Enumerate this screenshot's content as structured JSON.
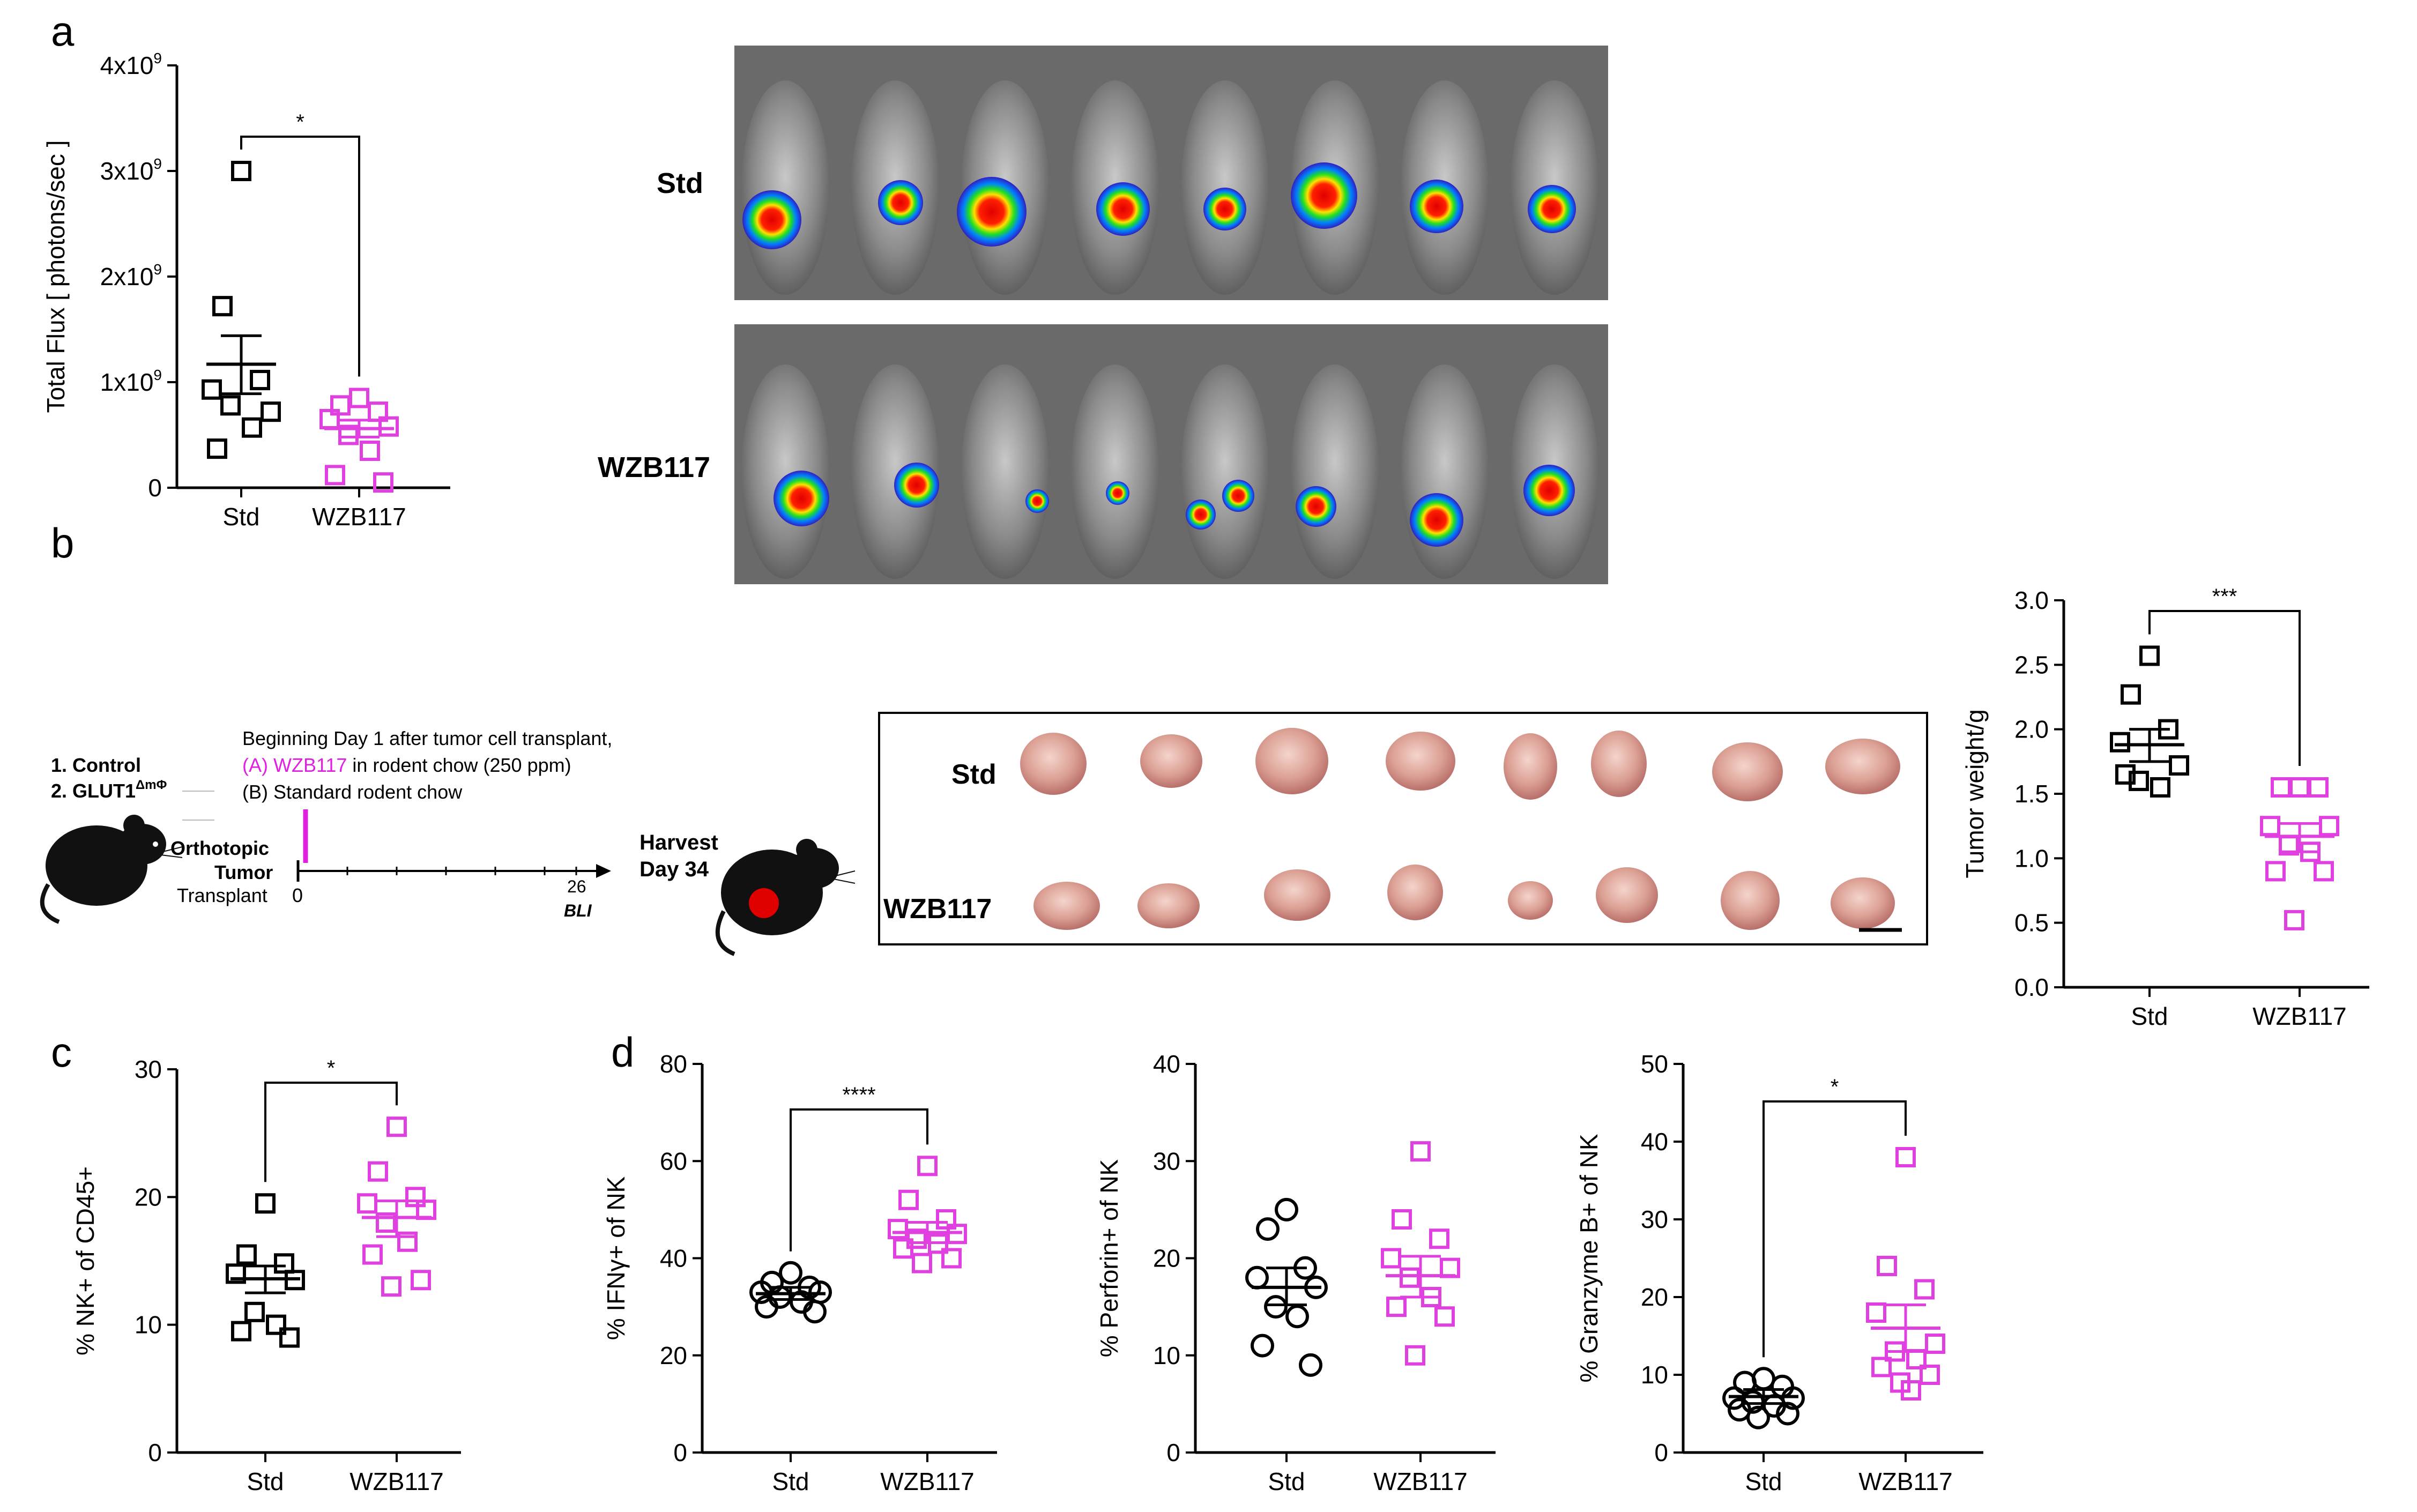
{
  "panel_labels": {
    "a": "a",
    "b": "b",
    "c": "c",
    "d": "d"
  },
  "colors": {
    "std": "#000000",
    "wzb": "#e040e0",
    "sig": "#000000"
  },
  "bli": {
    "row_labels": [
      "Std",
      "WZB117"
    ]
  },
  "timeline": {
    "group1": "1. Control",
    "group2": "2. GLUT1",
    "group2_sup": "ΔmΦ",
    "note_line1": "Beginning Day 1 after tumor cell transplant,",
    "note_line2_prefix": "(A) WZB117",
    "note_line2_suffix": " in rodent chow (250 ppm)",
    "note_line3": "(B) Standard rodent chow",
    "transplant_line1": "Orthotopic",
    "transplant_line2": "Tumor",
    "transplant_line3": "Transplant",
    "day0": "0",
    "day26": "26",
    "bli_label": "BLI",
    "harvest_line1": "Harvest",
    "harvest_line2": "Day 34"
  },
  "tumor_photo": {
    "row_labels": [
      "Std",
      "WZB117"
    ]
  },
  "chart_data": [
    {
      "id": "flux",
      "type": "scatter",
      "title": "",
      "ylabel": "Total Flux [ photons/sec ]",
      "ylim": [
        0,
        4
      ],
      "yticks": [
        "0",
        "1x10",
        "2x10",
        "3x10",
        "4x10"
      ],
      "ytick_exp": "9",
      "categories": [
        "Std",
        "WZB117"
      ],
      "marker": "square",
      "series": [
        {
          "name": "Std",
          "values": [
            3.0,
            1.72,
            1.02,
            0.93,
            0.72,
            0.78,
            0.57,
            0.37
          ],
          "mean": 1.17,
          "sem_low": 0.89,
          "sem_high": 1.44
        },
        {
          "name": "WZB117",
          "values": [
            0.85,
            0.78,
            0.72,
            0.65,
            0.58,
            0.5,
            0.35,
            0.12,
            0.05
          ],
          "mean": 0.56,
          "sem_low": 0.48,
          "sem_high": 0.64
        }
      ],
      "significance": "*"
    },
    {
      "id": "tumor_weight",
      "type": "scatter",
      "title": "",
      "ylabel": "Tumor weight/g",
      "ylim": [
        0,
        3
      ],
      "yticks": [
        "0.0",
        "0.5",
        "1.0",
        "1.5",
        "2.0",
        "2.5",
        "3.0"
      ],
      "categories": [
        "Std",
        "WZB117"
      ],
      "marker": "square",
      "series": [
        {
          "name": "Std",
          "values": [
            2.57,
            2.27,
            2.0,
            1.9,
            1.72,
            1.6,
            1.55,
            1.65
          ],
          "mean": 1.88,
          "sem_low": 1.75,
          "sem_high": 2.0
        },
        {
          "name": "WZB117",
          "values": [
            1.55,
            1.55,
            1.55,
            1.25,
            1.25,
            1.1,
            1.05,
            0.9,
            0.9,
            0.52
          ],
          "mean": 1.17,
          "sem_low": 1.05,
          "sem_high": 1.27
        }
      ],
      "significance": "***"
    },
    {
      "id": "nk_cd45",
      "type": "scatter",
      "title": "",
      "ylabel": "% NK+ of CD45+",
      "ylim": [
        0,
        30
      ],
      "yticks": [
        "0",
        "10",
        "20",
        "30"
      ],
      "categories": [
        "Std",
        "WZB117"
      ],
      "marker": "square",
      "series": [
        {
          "name": "Std",
          "values": [
            19.5,
            15.5,
            14.8,
            14.0,
            13.5,
            11.0,
            10.0,
            9.5,
            9.0
          ],
          "mean": 13.6,
          "sem_low": 12.5,
          "sem_high": 14.6
        },
        {
          "name": "WZB117",
          "values": [
            25.5,
            22.0,
            20.0,
            19.5,
            19.0,
            18.0,
            16.5,
            15.5,
            13.5,
            13.0
          ],
          "mean": 18.4,
          "sem_low": 16.9,
          "sem_high": 19.7
        }
      ],
      "significance": "*"
    },
    {
      "id": "ifng",
      "type": "scatter",
      "title": "",
      "ylabel": "% IFNγ+ of NK",
      "ylim": [
        0,
        80
      ],
      "yticks": [
        "0",
        "20",
        "40",
        "60",
        "80"
      ],
      "categories": [
        "Std",
        "WZB117"
      ],
      "marker": "circle_std_square_wzb",
      "series": [
        {
          "name": "Std",
          "values": [
            37,
            35,
            34,
            33,
            33,
            32,
            31,
            30,
            29
          ],
          "mean": 32.7,
          "sem_low": 31.5,
          "sem_high": 34.0
        },
        {
          "name": "WZB117",
          "values": [
            59,
            52,
            48,
            46,
            45,
            44,
            43,
            42,
            40,
            39
          ],
          "mean": 45.3,
          "sem_low": 43.2,
          "sem_high": 47.4
        }
      ],
      "significance": "****"
    },
    {
      "id": "perforin",
      "type": "scatter",
      "title": "",
      "ylabel": "% Perforin+ of NK",
      "ylim": [
        0,
        40
      ],
      "yticks": [
        "0",
        "10",
        "20",
        "30",
        "40"
      ],
      "categories": [
        "Std",
        "WZB117"
      ],
      "marker": "circle_std_square_wzb",
      "series": [
        {
          "name": "Std",
          "values": [
            25,
            23,
            19,
            18,
            17,
            15,
            14,
            11,
            9
          ],
          "mean": 17.0,
          "sem_low": 15.2,
          "sem_high": 19.0
        },
        {
          "name": "WZB117",
          "values": [
            31,
            24,
            22,
            20,
            19,
            18,
            16,
            15,
            14,
            10
          ],
          "mean": 18.2,
          "sem_low": 16.0,
          "sem_high": 20.2
        }
      ],
      "significance": ""
    },
    {
      "id": "granzyme",
      "type": "scatter",
      "title": "",
      "ylabel": "% Granzyme B+ of NK",
      "ylim": [
        0,
        50
      ],
      "yticks": [
        "0",
        "10",
        "20",
        "30",
        "40",
        "50"
      ],
      "categories": [
        "Std",
        "WZB117"
      ],
      "marker": "circle_std_square_wzb",
      "series": [
        {
          "name": "Std",
          "values": [
            9.5,
            9.0,
            8.5,
            7.0,
            7.0,
            6.5,
            6.0,
            5.5,
            5.0,
            4.5
          ],
          "mean": 7.2,
          "sem_low": 6.3,
          "sem_high": 8.1
        },
        {
          "name": "WZB117",
          "values": [
            38,
            24,
            21,
            18,
            14,
            13,
            12,
            11,
            10,
            9,
            8
          ],
          "mean": 16.0,
          "sem_low": 13.0,
          "sem_high": 19.0
        }
      ],
      "significance": "*"
    }
  ]
}
